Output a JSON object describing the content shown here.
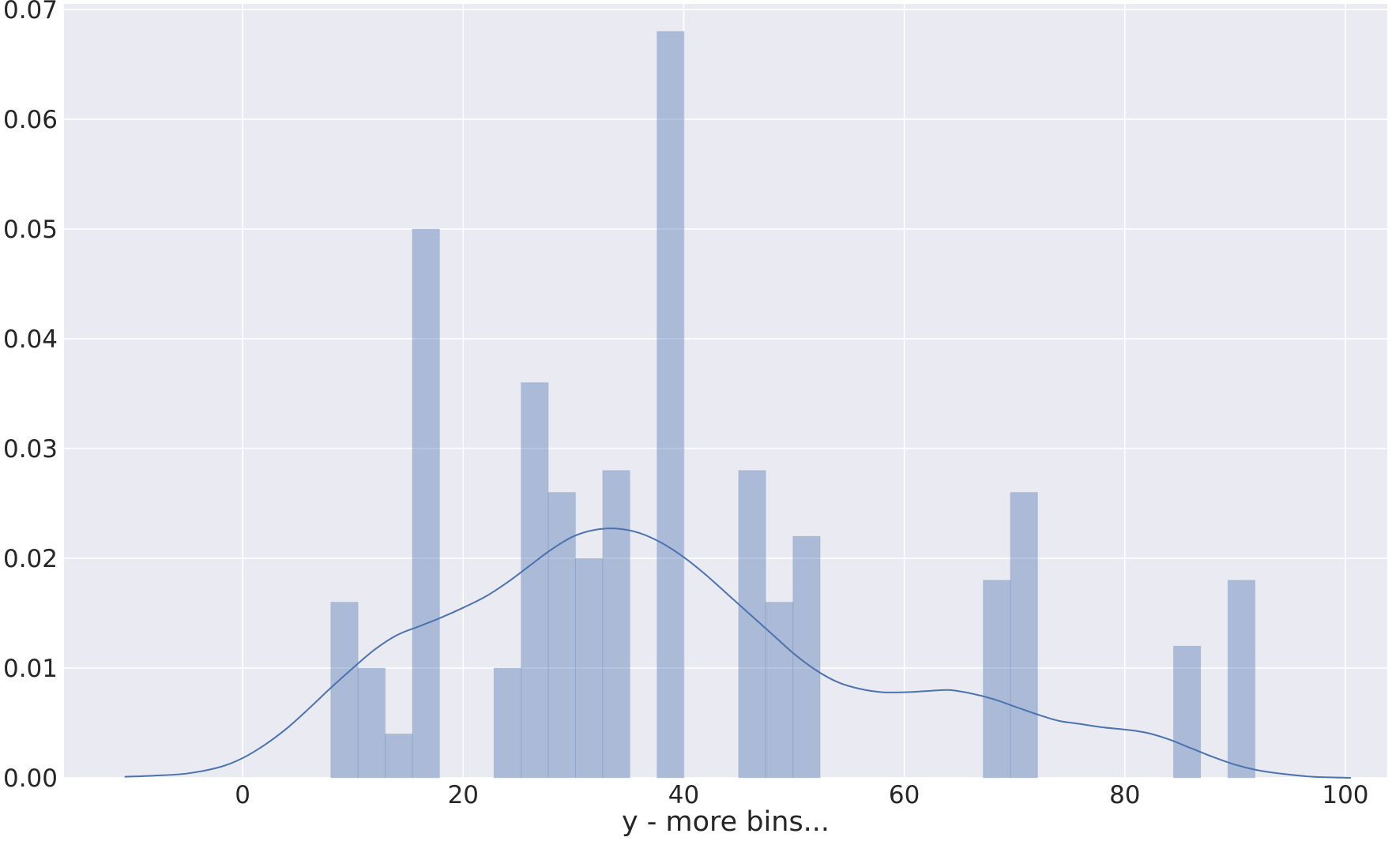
{
  "chart_data": {
    "type": "bar",
    "title": "",
    "xlabel": "y - more bins...",
    "ylabel": "",
    "xlim": [
      -16.2,
      103.8
    ],
    "ylim": [
      0,
      0.0705
    ],
    "x_ticks": [
      0,
      20,
      40,
      60,
      80,
      100
    ],
    "x_tick_labels": [
      "0",
      "20",
      "40",
      "60",
      "80",
      "100"
    ],
    "y_ticks": [
      0.0,
      0.01,
      0.02,
      0.03,
      0.04,
      0.05,
      0.06,
      0.07
    ],
    "y_tick_labels": [
      "0.00",
      "0.01",
      "0.02",
      "0.03",
      "0.04",
      "0.05",
      "0.06",
      "0.07"
    ],
    "grid": true,
    "background": "#eaeaf2",
    "bar_color": "#4c72b0",
    "bar_opacity": 0.4,
    "line_color": "#4c72b0",
    "histogram": {
      "bin_start": 8.0,
      "bin_width": 2.465,
      "densities": [
        0.016,
        0.01,
        0.004,
        0.05,
        0,
        0,
        0.01,
        0.036,
        0.026,
        0.02,
        0.028,
        0,
        0.068,
        0,
        0,
        0.028,
        0.016,
        0.022,
        0,
        0,
        0,
        0,
        0,
        0,
        0.018,
        0.026,
        0,
        0,
        0,
        0,
        0,
        0.012,
        0,
        0.018
      ]
    },
    "series": [
      {
        "type": "line",
        "x": [
          -10.7,
          -8,
          -5,
          -2,
          0,
          2,
          4,
          6,
          8,
          10,
          12,
          14,
          16,
          18,
          20,
          22,
          24,
          26,
          28,
          30,
          32,
          34,
          36,
          38,
          40,
          42,
          44,
          46,
          48,
          50,
          52,
          54,
          56,
          58,
          60,
          62,
          64,
          66,
          68,
          70,
          72,
          74,
          76,
          78,
          80,
          82,
          84,
          86,
          88,
          90,
          92,
          94,
          97,
          100.5
        ],
        "y": [
          0.0001,
          0.0002,
          0.0004,
          0.001,
          0.0018,
          0.003,
          0.0045,
          0.0063,
          0.0082,
          0.01,
          0.0117,
          0.013,
          0.0138,
          0.0146,
          0.0155,
          0.0165,
          0.0178,
          0.0193,
          0.0208,
          0.022,
          0.0226,
          0.0227,
          0.0223,
          0.0214,
          0.0201,
          0.0185,
          0.0167,
          0.0149,
          0.0131,
          0.0113,
          0.0098,
          0.0087,
          0.0081,
          0.0078,
          0.0078,
          0.0079,
          0.008,
          0.0077,
          0.0072,
          0.0065,
          0.0058,
          0.0052,
          0.0049,
          0.0046,
          0.0044,
          0.0041,
          0.0035,
          0.0027,
          0.0019,
          0.0012,
          0.0007,
          0.0004,
          0.0001,
          0.0
        ]
      }
    ]
  }
}
